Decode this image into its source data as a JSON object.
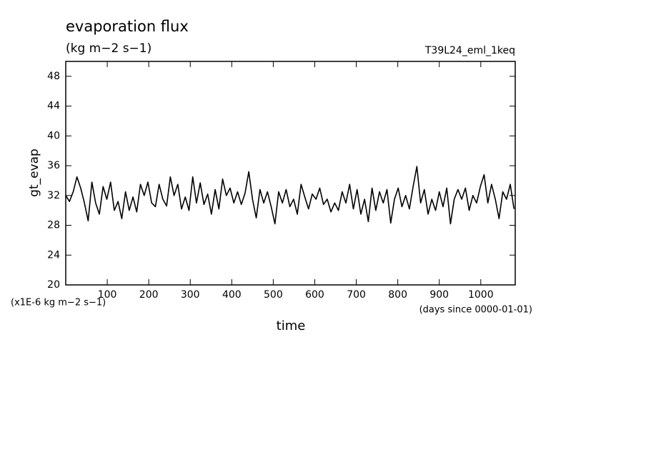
{
  "chart_data": {
    "type": "line",
    "title": "evaporation flux",
    "subtitle": "(kg m−2 s−1)",
    "run_label": "T39L24_eml_1keq",
    "y_label": "gt_evap",
    "x_label": "time",
    "y_unit_note": "(x1E-6 kg m−2 s−1)",
    "x_unit_note": "(days since 0000-01-01)",
    "xlim": [
      0,
      1083
    ],
    "ylim": [
      20,
      50
    ],
    "xticks": [
      100,
      200,
      300,
      400,
      500,
      600,
      700,
      800,
      900,
      1000
    ],
    "yticks": [
      20,
      24,
      28,
      32,
      36,
      40,
      44,
      48
    ],
    "color": "#000000",
    "x": [
      0,
      9,
      18,
      27,
      36,
      45,
      54,
      63,
      72,
      81,
      90,
      99,
      108,
      117,
      126,
      135,
      144,
      153,
      162,
      171,
      180,
      189,
      198,
      207,
      216,
      225,
      234,
      243,
      252,
      261,
      270,
      279,
      288,
      297,
      306,
      315,
      324,
      333,
      342,
      351,
      360,
      369,
      378,
      387,
      396,
      405,
      414,
      423,
      432,
      441,
      450,
      459,
      468,
      477,
      486,
      495,
      504,
      513,
      522,
      531,
      540,
      549,
      558,
      567,
      576,
      585,
      594,
      603,
      612,
      621,
      630,
      639,
      648,
      657,
      666,
      675,
      684,
      693,
      702,
      711,
      720,
      729,
      738,
      747,
      756,
      765,
      774,
      783,
      792,
      801,
      810,
      819,
      828,
      837,
      846,
      855,
      864,
      873,
      882,
      891,
      900,
      909,
      918,
      927,
      936,
      945,
      954,
      963,
      972,
      981,
      990,
      999,
      1008,
      1017,
      1026,
      1035,
      1044,
      1053,
      1062,
      1071,
      1080
    ],
    "values": [
      32,
      31.2,
      32.5,
      34.5,
      33,
      31,
      28.6,
      33.8,
      31,
      29.5,
      33.2,
      31.5,
      33.8,
      30,
      31.2,
      28.9,
      32.5,
      30,
      31.8,
      29.8,
      33.5,
      32,
      33.8,
      31,
      30.5,
      33.5,
      31.5,
      30.6,
      34.5,
      32,
      33.5,
      30.2,
      31.8,
      30,
      34.5,
      31,
      33.7,
      30.8,
      32.2,
      29.5,
      32.8,
      30.2,
      34.2,
      32,
      33,
      31,
      32.5,
      30.8,
      32.3,
      35.2,
      31.5,
      29,
      32.8,
      31,
      32.5,
      30.5,
      28.2,
      32.5,
      31,
      32.8,
      30.5,
      31.5,
      29.5,
      33.5,
      31.8,
      30.2,
      32.2,
      31.5,
      33,
      30.8,
      31.5,
      29.8,
      31,
      30,
      32.5,
      31,
      33.5,
      30.2,
      32.8,
      29.5,
      31.5,
      28.5,
      33,
      30,
      32.5,
      31,
      32.8,
      28.3,
      31.5,
      33,
      30.5,
      32,
      30.2,
      33.2,
      35.9,
      31,
      32.8,
      29.5,
      31.5,
      30,
      32.5,
      30.5,
      33,
      28.2,
      31.5,
      32.8,
      31.5,
      33,
      30,
      32,
      31,
      33.2,
      34.8,
      31,
      33.5,
      31.5,
      28.9,
      32.5,
      31.5,
      33.5,
      30.2
    ]
  }
}
